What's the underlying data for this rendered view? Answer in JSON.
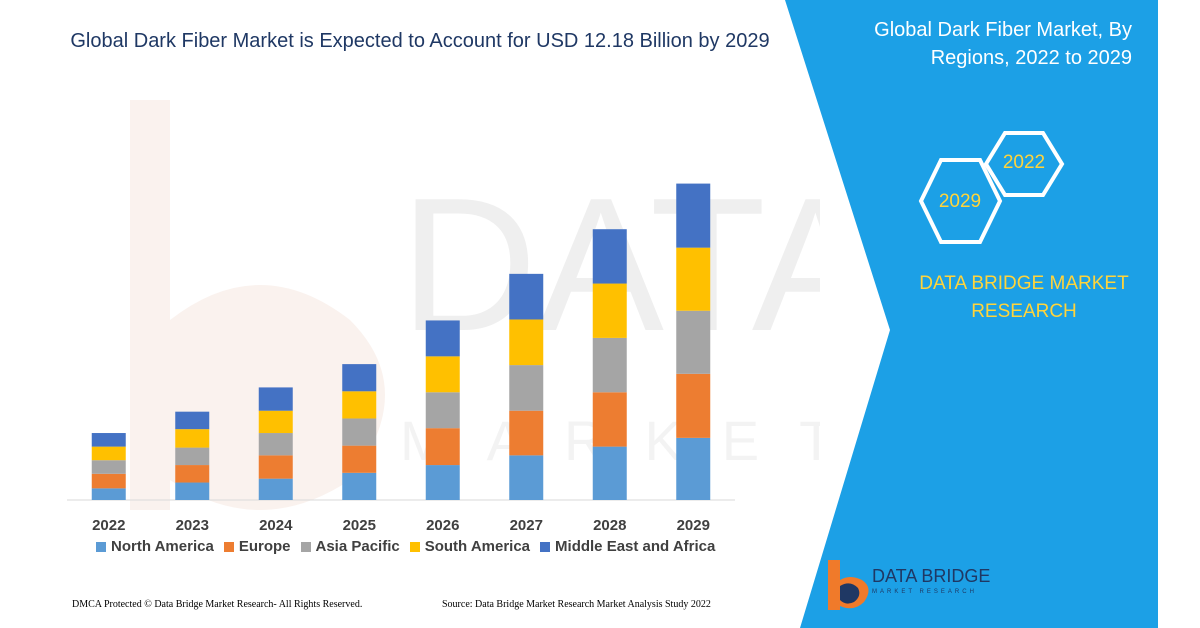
{
  "colors": {
    "north_america": "#5b9bd5",
    "europe": "#ed7d31",
    "asia_pacific": "#a5a5a5",
    "south_america": "#ffc000",
    "middle_east_africa": "#4472c4",
    "panel_blue": "#1ca0e6",
    "accent_yellow": "#ffd43b"
  },
  "title": "Global Dark Fiber Market is Expected to Account for USD 12.18 Billion by 2029",
  "side_panel": {
    "heading": "Global Dark Fiber Market, By Regions, 2022 to 2029",
    "hex_top": "2022",
    "hex_bottom": "2029",
    "brand": "DATA BRIDGE MARKET RESEARCH"
  },
  "logo": {
    "name": "DATA BRIDGE",
    "tagline": "MARKET RESEARCH"
  },
  "footer": {
    "left": "DMCA Protected © Data Bridge Market Research- All Rights Reserved.",
    "right": "Source: Data Bridge Market Research Market Analysis Study 2022"
  },
  "chart_data": {
    "type": "bar",
    "stacked": true,
    "categories": [
      "2022",
      "2023",
      "2024",
      "2025",
      "2026",
      "2027",
      "2028",
      "2029"
    ],
    "series": [
      {
        "name": "North America",
        "values": [
          12,
          18,
          22,
          28,
          36,
          46,
          55,
          64
        ]
      },
      {
        "name": "Europe",
        "values": [
          15,
          18,
          24,
          28,
          38,
          46,
          56,
          66
        ]
      },
      {
        "name": "Asia Pacific",
        "values": [
          14,
          18,
          23,
          28,
          37,
          47,
          56,
          65
        ]
      },
      {
        "name": "South America",
        "values": [
          14,
          19,
          23,
          28,
          37,
          47,
          56,
          65
        ]
      },
      {
        "name": "Middle East and Africa",
        "values": [
          14,
          18,
          24,
          28,
          37,
          47,
          56,
          66
        ]
      }
    ],
    "ylim": [
      0,
      340
    ],
    "grid": false,
    "legend": "bottom"
  }
}
